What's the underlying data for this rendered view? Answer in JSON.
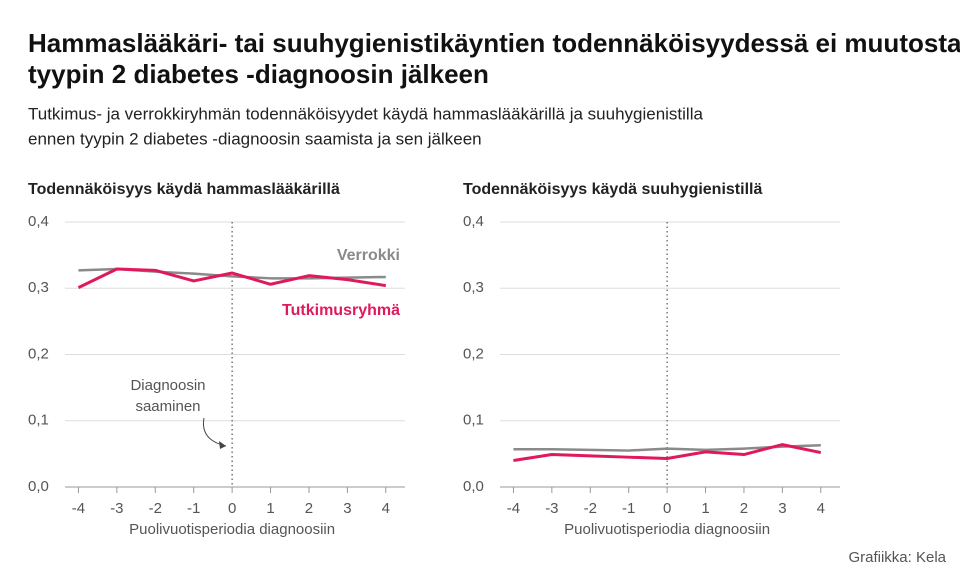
{
  "title": "Hammaslääkäri- tai suuhygienistikäyntien todennäköisyydessä ei muutosta tyypin 2 diabetes -diagnoosin jälkeen",
  "title_lines": [
    "Hammaslääkäri- tai suuhygienistikäyntien todennäköisyydessä ei muutosta",
    "tyypin 2 diabetes -diagnoosin jälkeen"
  ],
  "subtitle_lines": [
    "Tutkimus- ja verrokkiryhmän todennäköisyydet käydä hammaslääkärillä ja suuhygienistilla",
    "ennen tyypin 2 diabetes -diagnoosin saamista ja sen jälkeen"
  ],
  "source": "Grafiikka: Kela",
  "chart_data": [
    {
      "type": "line",
      "title": "Todennäköisyys käydä hammaslääkärillä",
      "xlabel": "Puolivuotisperiodia diagnoosiin",
      "x": [
        -4,
        -3,
        -2,
        -1,
        0,
        1,
        2,
        3,
        4
      ],
      "series": [
        {
          "name": "Verrokki",
          "color": "#8a8a8a",
          "values": [
            0.327,
            0.329,
            0.325,
            0.322,
            0.318,
            0.315,
            0.315,
            0.316,
            0.317
          ]
        },
        {
          "name": "Tutkimusryhmä",
          "color": "#e0195f",
          "values": [
            0.301,
            0.329,
            0.327,
            0.311,
            0.323,
            0.306,
            0.319,
            0.313,
            0.304
          ]
        }
      ],
      "xlim": [
        -4.35,
        4.5
      ],
      "xticks": [
        -4,
        -3,
        -2,
        -1,
        0,
        1,
        2,
        3,
        4
      ],
      "ylim": [
        0,
        0.4
      ],
      "yticks": [
        {
          "value": 0,
          "label": "0,0"
        },
        {
          "value": 0.1,
          "label": "0,1"
        },
        {
          "value": 0.2,
          "label": "0,2"
        },
        {
          "value": 0.3,
          "label": "0,3"
        },
        {
          "value": 0.4,
          "label": "0,4"
        }
      ],
      "grid": true,
      "marker_x": 0,
      "annotation": [
        "Diagnoosin",
        "saaminen"
      ]
    },
    {
      "type": "line",
      "title": "Todennäköisyys käydä suuhygienistillä",
      "xlabel": "Puolivuotisperiodia diagnoosiin",
      "x": [
        -4,
        -3,
        -2,
        -1,
        0,
        1,
        2,
        3,
        4
      ],
      "series": [
        {
          "color": "#8a8a8a",
          "values": [
            0.057,
            0.057,
            0.056,
            0.055,
            0.058,
            0.056,
            0.058,
            0.061,
            0.063
          ]
        },
        {
          "color": "#e0195f",
          "values": [
            0.04,
            0.049,
            0.047,
            0.045,
            0.043,
            0.053,
            0.049,
            0.064,
            0.052
          ]
        }
      ],
      "xlim": [
        -4.35,
        4.5
      ],
      "xticks": [
        -4,
        -3,
        -2,
        -1,
        0,
        1,
        2,
        3,
        4
      ],
      "ylim": [
        0,
        0.4
      ],
      "yticks": [
        {
          "value": 0,
          "label": "0,0"
        },
        {
          "value": 0.1,
          "label": "0,1"
        },
        {
          "value": 0.2,
          "label": "0,2"
        },
        {
          "value": 0.3,
          "label": "0,3"
        },
        {
          "value": 0.4,
          "label": "0,4"
        }
      ],
      "grid": true,
      "marker_x": 0
    }
  ]
}
